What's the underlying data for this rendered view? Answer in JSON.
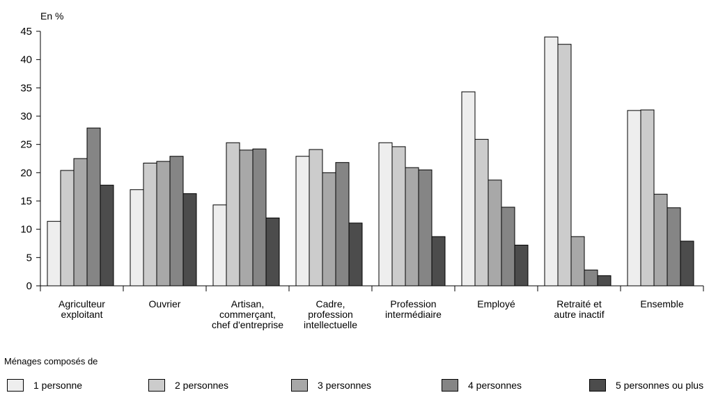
{
  "chart_data": {
    "type": "bar",
    "unit_label": "En %",
    "ylim": [
      0,
      45
    ],
    "yticks": [
      0,
      5,
      10,
      15,
      20,
      25,
      30,
      35,
      40,
      45
    ],
    "categories": [
      [
        "Agriculteur",
        "exploitant"
      ],
      [
        "Ouvrier"
      ],
      [
        "Artisan,",
        "commerçant,",
        "chef d'entreprise"
      ],
      [
        "Cadre,",
        "profession",
        "intellectuelle"
      ],
      [
        "Profession",
        "intermédiaire"
      ],
      [
        "Employé"
      ],
      [
        "Retraité et",
        "autre inactif"
      ],
      [
        "Ensemble"
      ]
    ],
    "series": [
      {
        "name": "1 personne",
        "color": "#eeeeee",
        "values": [
          11.4,
          17.0,
          14.3,
          22.9,
          25.3,
          34.3,
          44.0,
          31.0
        ]
      },
      {
        "name": "2 personnes",
        "color": "#cccccc",
        "values": [
          20.4,
          21.7,
          25.3,
          24.1,
          24.6,
          25.9,
          42.7,
          31.1
        ]
      },
      {
        "name": "3 personnes",
        "color": "#a8a8a8",
        "values": [
          22.5,
          22.0,
          24.0,
          20.0,
          20.9,
          18.7,
          8.7,
          16.2
        ]
      },
      {
        "name": "4 personnes",
        "color": "#858585",
        "values": [
          27.9,
          22.9,
          24.2,
          21.8,
          20.5,
          13.9,
          2.8,
          13.8
        ]
      },
      {
        "name": "5 personnes ou plus",
        "color": "#4c4c4c",
        "values": [
          17.8,
          16.3,
          12.0,
          11.1,
          8.7,
          7.2,
          1.8,
          7.9
        ]
      }
    ],
    "legend": {
      "title": "Ménages composés de",
      "position": "bottom"
    },
    "grid": false
  }
}
